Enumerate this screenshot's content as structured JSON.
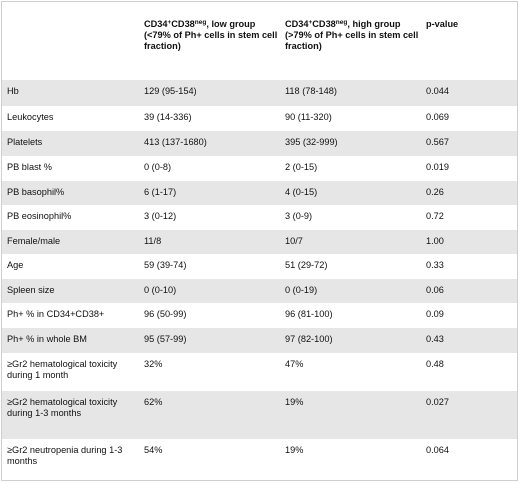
{
  "header": {
    "col1": "",
    "col2": {
      "prefix": "CD34",
      "sup1": "+",
      "mid": "CD38",
      "sup2": "neg",
      "rest": ", low group (<79% of Ph+ cells in stem cell fraction)"
    },
    "col3": {
      "prefix": "CD34",
      "sup1": "+",
      "mid": "CD38",
      "sup2": "neg",
      "rest": ", high group (>79% of Ph+ cells in stem cell fraction)"
    },
    "col4": "p-value"
  },
  "rows": [
    {
      "label": "Hb",
      "low": "129 (95-154)",
      "high": "118 (78-148)",
      "p": "0.044"
    },
    {
      "label": "Leukocytes",
      "low": "39 (14-336)",
      "high": "90 (11-320)",
      "p": "0.069"
    },
    {
      "label": "Platelets",
      "low": "413 (137-1680)",
      "high": "395 (32-999)",
      "p": "0.567"
    },
    {
      "label": "PB blast %",
      "low": "0 (0-8)",
      "high": "2 (0-15)",
      "p": "0.019"
    },
    {
      "label": "PB basophil%",
      "low": "6 (1-17)",
      "high": "4 (0-15)",
      "p": "0.26"
    },
    {
      "label": "PB eosinophil%",
      "low": "3 (0-12)",
      "high": "3 (0-9)",
      "p": "0.72"
    },
    {
      "label": "Female/male",
      "low": "11/8",
      "high": "10/7",
      "p": "1.00"
    },
    {
      "label": "Age",
      "low": "59 (39-74)",
      "high": "51 (29-72)",
      "p": "0.33"
    },
    {
      "label": "Spleen size",
      "low": "0 (0-10)",
      "high": "0 (0-19)",
      "p": "0.06"
    },
    {
      "label": "Ph+ % in CD34+CD38+",
      "low": "96 (50-99)",
      "high": "96 (81-100)",
      "p": "0.09"
    },
    {
      "label": "Ph+ % in whole BM",
      "low": "95 (57-99)",
      "high": "97 (82-100)",
      "p": "0.43"
    },
    {
      "label": "≥Gr2 hematological toxicity during 1 month",
      "low": "32%",
      "high": "47%",
      "p": "0.48"
    },
    {
      "label": "≥Gr2 hematological toxicity during 1-3 months",
      "low": "62%",
      "high": "19%",
      "p": "0.027"
    },
    {
      "label": "≥Gr2 neutropenia during 1-3 months",
      "low": "54%",
      "high": "19%",
      "p": "0.064"
    }
  ],
  "colors": {
    "shade": "#e6e6e6",
    "border": "#cfcfcf"
  }
}
